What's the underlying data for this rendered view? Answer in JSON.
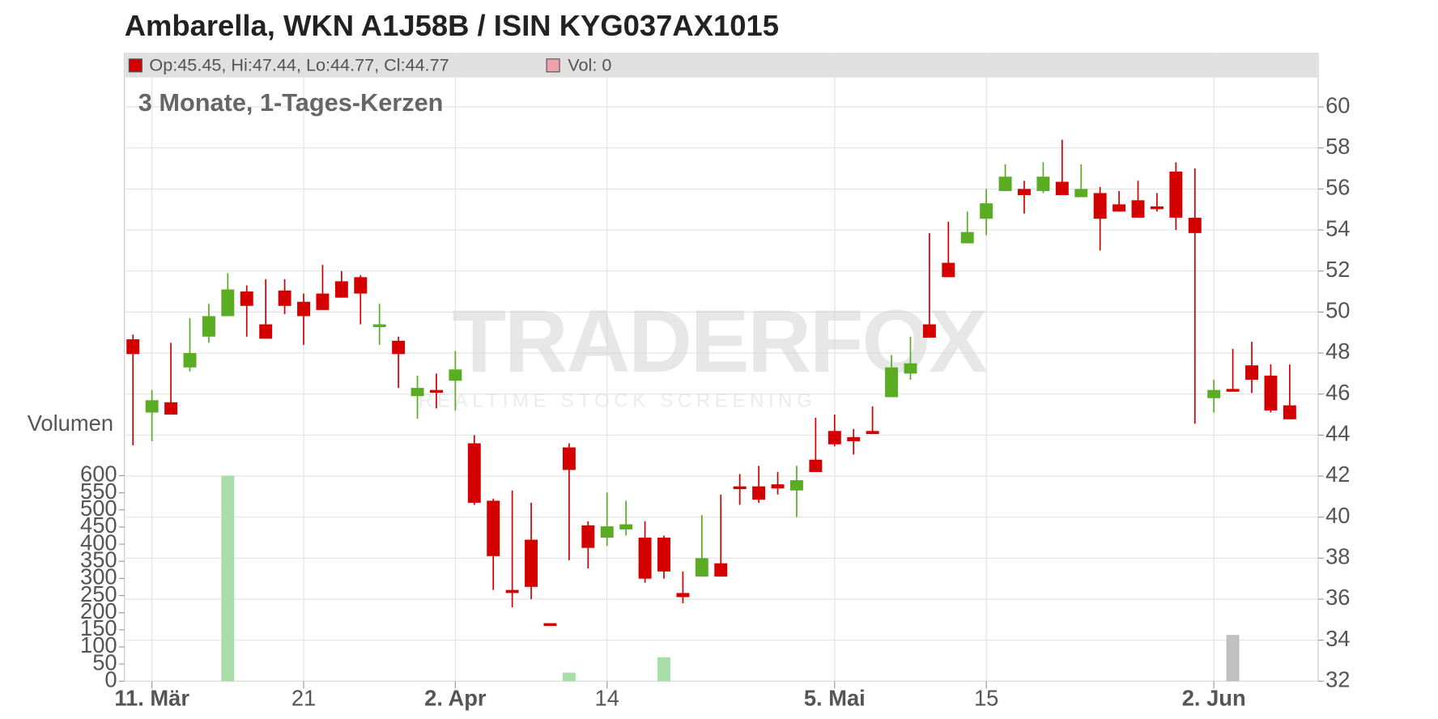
{
  "chart_data": {
    "type": "candlestick",
    "title": "Ambarella, WKN A1J58B / ISIN KYG037AX1015",
    "subtitle": "3 Monate, 1-Tages-Kerzen",
    "legend": {
      "price": "Op:45.45, Hi:47.44, Lo:44.77, Cl:44.77",
      "volume": "Vol: 0"
    },
    "watermark": {
      "title": "TRADERFOX",
      "subtitle": "REALTIME STOCK SCREENING"
    },
    "up_color": "#5aac23",
    "down_color": "#d40000",
    "grid": true,
    "xlim": [
      -0.45,
      62.5
    ],
    "xticks": [
      {
        "value": 1,
        "label": "11. Mär"
      },
      {
        "value": 9,
        "label": "21"
      },
      {
        "value": 17,
        "label": "2. Apr"
      },
      {
        "value": 25,
        "label": "14"
      },
      {
        "value": 37,
        "label": "5. Mai"
      },
      {
        "value": 45,
        "label": "15"
      },
      {
        "value": 57,
        "label": "2. Jun"
      }
    ],
    "ylim": [
      32,
      60
    ],
    "yticks": [
      32,
      34,
      36,
      38,
      40,
      42,
      44,
      46,
      48,
      50,
      52,
      54,
      56,
      58,
      60
    ],
    "open": [
      48.67,
      45.1,
      45.6,
      47.3,
      48.8,
      49.8,
      51.0,
      49.4,
      51.05,
      50.5,
      50.9,
      51.5,
      51.7,
      49.3,
      48.6,
      45.9,
      46.2,
      46.65,
      43.6,
      40.8,
      36.45,
      38.9,
      34.83,
      43.4,
      39.6,
      39.0,
      39.4,
      39.0,
      39.0,
      36.3,
      37.1,
      37.75,
      41.5,
      41.5,
      41.6,
      41.3,
      42.8,
      44.2,
      43.9,
      44.2,
      45.85,
      47.0,
      49.4,
      52.4,
      53.35,
      54.55,
      55.9,
      56.0,
      55.9,
      56.35,
      55.6,
      55.8,
      55.25,
      55.45,
      55.15,
      56.85,
      54.6,
      45.8,
      46.25,
      47.4,
      46.9,
      45.45
    ],
    "high": [
      48.9,
      46.2,
      48.5,
      49.7,
      50.4,
      51.9,
      51.3,
      51.6,
      51.6,
      50.9,
      52.3,
      52.0,
      51.8,
      50.4,
      48.8,
      46.9,
      47.0,
      48.1,
      44.0,
      40.9,
      41.3,
      40.7,
      34.83,
      43.6,
      39.8,
      41.2,
      40.8,
      39.8,
      39.1,
      37.35,
      40.1,
      41.1,
      42.1,
      42.5,
      42.2,
      42.5,
      44.85,
      45.0,
      44.3,
      45.4,
      47.9,
      48.8,
      53.85,
      54.4,
      54.9,
      56.0,
      57.2,
      56.4,
      57.3,
      58.4,
      57.2,
      56.1,
      55.9,
      56.4,
      55.8,
      57.3,
      57.0,
      46.7,
      48.2,
      48.55,
      47.45,
      47.44
    ],
    "low": [
      43.5,
      43.7,
      45.0,
      47.1,
      48.5,
      49.8,
      48.8,
      48.7,
      49.9,
      48.4,
      50.1,
      50.7,
      49.4,
      48.4,
      46.3,
      44.8,
      45.3,
      45.2,
      40.6,
      36.45,
      35.6,
      36.0,
      34.83,
      37.9,
      37.5,
      38.6,
      39.1,
      36.8,
      37.0,
      35.8,
      37.1,
      37.1,
      40.6,
      40.7,
      41.1,
      40.0,
      42.2,
      43.45,
      43.05,
      44.05,
      45.85,
      46.7,
      48.75,
      51.7,
      53.35,
      53.75,
      55.9,
      54.8,
      55.8,
      55.7,
      55.6,
      53.0,
      54.9,
      54.6,
      54.9,
      54.0,
      44.55,
      45.1,
      46.25,
      46.05,
      45.1,
      44.77
    ],
    "close": [
      47.95,
      45.7,
      45.0,
      48.0,
      49.8,
      51.1,
      50.3,
      48.7,
      50.3,
      49.8,
      50.1,
      50.7,
      50.9,
      49.4,
      47.95,
      46.3,
      46.2,
      47.2,
      40.7,
      38.1,
      36.3,
      36.6,
      34.83,
      42.3,
      38.5,
      39.55,
      39.65,
      37.0,
      37.35,
      36.1,
      38.0,
      37.1,
      41.5,
      40.85,
      41.4,
      41.8,
      42.2,
      43.55,
      43.7,
      44.05,
      47.3,
      47.5,
      48.75,
      51.7,
      53.9,
      55.3,
      56.6,
      55.7,
      56.6,
      55.7,
      56.0,
      54.55,
      54.9,
      54.6,
      55.15,
      54.6,
      53.85,
      46.2,
      46.25,
      46.7,
      45.2,
      44.77
    ],
    "volume": {
      "label": "Volumen",
      "ylim": [
        0,
        600
      ],
      "yticks": [
        0,
        50,
        100,
        150,
        200,
        250,
        300,
        350,
        400,
        450,
        500,
        550,
        600
      ],
      "x": [
        5,
        23,
        28,
        58
      ],
      "values": [
        600,
        25,
        70,
        135
      ],
      "colors": [
        "#a8dfa8",
        "#a8dfa8",
        "#a8dfa8",
        "#c0c0c0"
      ]
    }
  }
}
